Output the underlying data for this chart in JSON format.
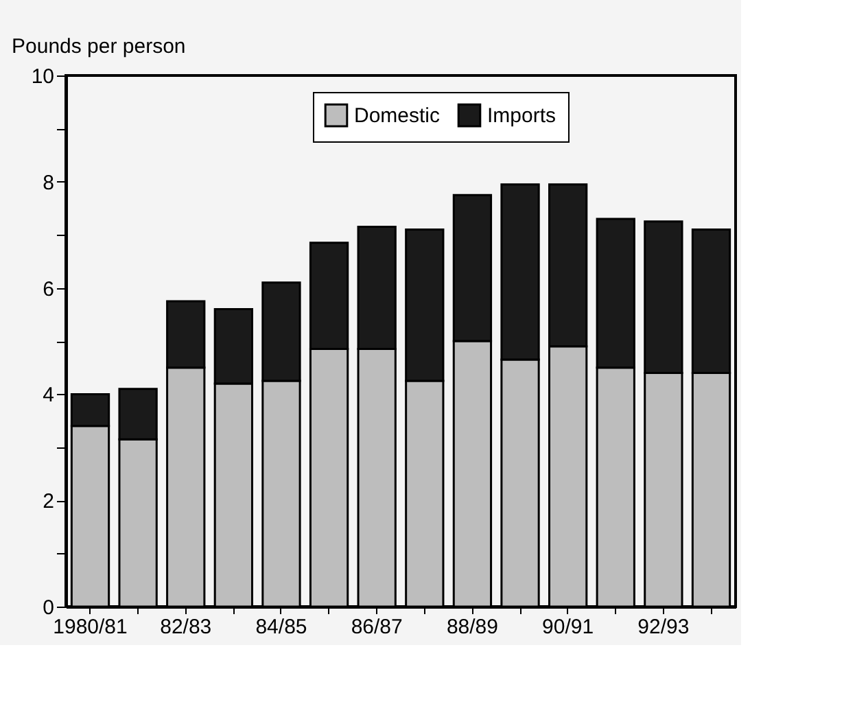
{
  "chart_data": {
    "type": "bar",
    "stacked": true,
    "ylabel": "Pounds per person",
    "categories": [
      "1980/81",
      null,
      "82/83",
      null,
      "84/85",
      null,
      "86/87",
      null,
      "88/89",
      null,
      "90/91",
      null,
      "92/93",
      null
    ],
    "series": [
      {
        "name": "Domestic",
        "color": "#bdbdbd",
        "values": [
          3.4,
          3.15,
          4.5,
          4.2,
          4.25,
          4.85,
          4.85,
          4.25,
          5.0,
          4.65,
          4.9,
          4.5,
          4.4,
          4.4
        ]
      },
      {
        "name": "Imports",
        "color": "#1a1a1a",
        "values": [
          0.6,
          0.95,
          1.25,
          1.4,
          1.85,
          2.0,
          2.3,
          2.85,
          2.75,
          3.3,
          3.05,
          2.8,
          2.85,
          2.7
        ]
      }
    ],
    "ylim": [
      0,
      10
    ],
    "yticks": [
      0,
      {
        "value": 1,
        "label": null
      },
      2,
      {
        "value": 3,
        "label": null
      },
      4,
      {
        "value": 5,
        "label": null
      },
      6,
      {
        "value": 7,
        "label": null
      },
      8,
      {
        "value": 9,
        "label": null
      },
      10
    ],
    "grid": false,
    "legend": "top"
  }
}
